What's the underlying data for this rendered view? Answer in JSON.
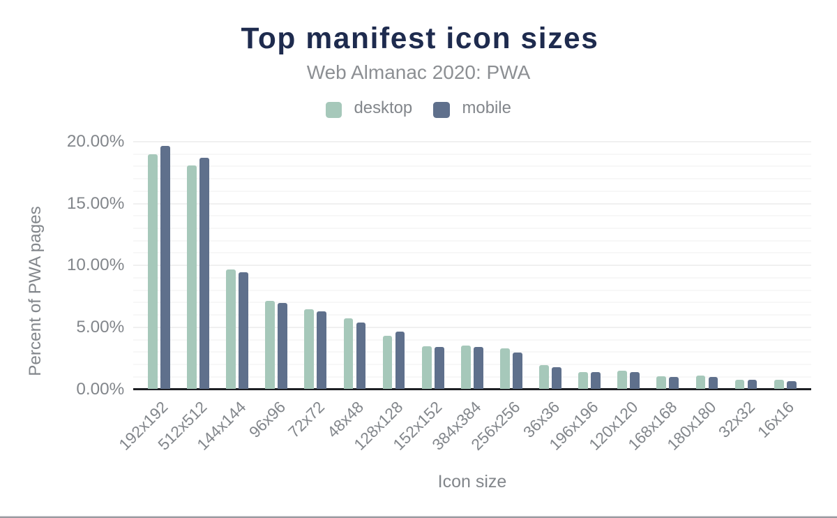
{
  "chart": {
    "title": "Top manifest icon sizes",
    "subtitle": "Web Almanac 2020: PWA",
    "legend": [
      {
        "label": "desktop",
        "color": "#a6c8ba"
      },
      {
        "label": "mobile",
        "color": "#5f708c"
      }
    ],
    "x_axis_title": "Icon size",
    "y_axis_title": "Percent of PWA pages"
  },
  "chart_data": {
    "type": "bar",
    "title": "Top manifest icon sizes",
    "subtitle": "Web Almanac 2020: PWA",
    "categories": [
      "192x192",
      "512x512",
      "144x144",
      "96x96",
      "72x72",
      "48x48",
      "128x128",
      "152x152",
      "384x384",
      "256x256",
      "36x36",
      "196x196",
      "120x120",
      "168x168",
      "180x180",
      "32x32",
      "16x16"
    ],
    "series": [
      {
        "name": "desktop",
        "color": "#a6c8ba",
        "values": [
          18.97,
          18.05,
          9.66,
          7.13,
          6.48,
          5.7,
          4.32,
          3.45,
          3.52,
          3.29,
          1.92,
          1.4,
          1.47,
          1.04,
          1.11,
          0.77,
          0.77
        ]
      },
      {
        "name": "mobile",
        "color": "#5f708c",
        "values": [
          19.64,
          18.69,
          9.47,
          6.99,
          6.31,
          5.39,
          4.66,
          3.42,
          3.4,
          2.98,
          1.76,
          1.4,
          1.37,
          1.01,
          0.96,
          0.75,
          0.63
        ]
      }
    ],
    "xlabel": "Icon size",
    "ylabel": "Percent of PWA pages",
    "ylim": [
      0,
      20
    ],
    "ytick_step": 5,
    "ytick_minor_step": 1,
    "ytick_labels": [
      "0.00%",
      "5.00%",
      "10.00%",
      "15.00%",
      "20.00%"
    ],
    "grid": "on",
    "legend_position": "top"
  }
}
